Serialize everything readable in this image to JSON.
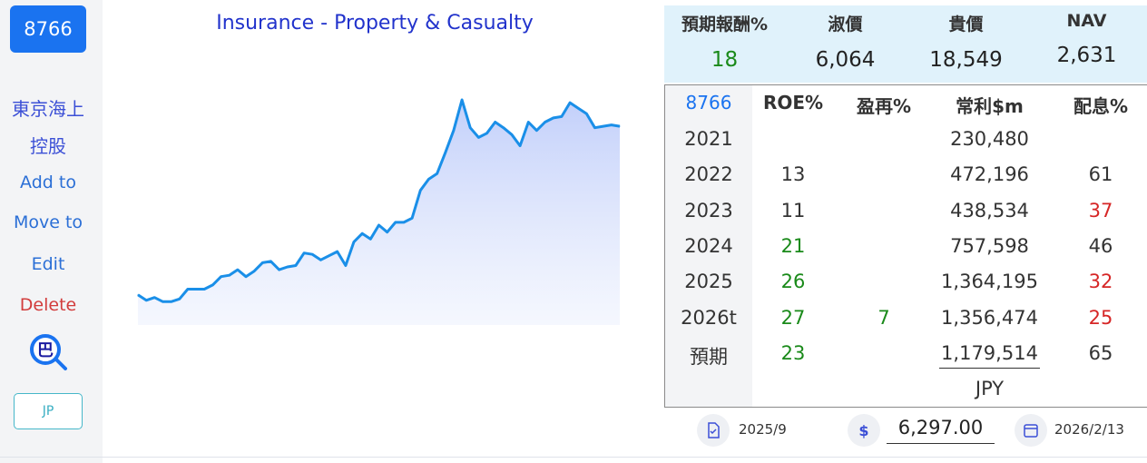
{
  "sidebar": {
    "ticker": "8766",
    "company_line1": "東京海上",
    "company_line2": "控股",
    "add_label": "Add to",
    "move_label": "Move to",
    "edit_label": "Edit",
    "delete_label": "Delete",
    "search_glyph": "巴",
    "market_label": "JP"
  },
  "chart": {
    "title": "Insurance - Property & Casualty"
  },
  "chart_data": {
    "type": "area",
    "title": "Insurance - Property & Casualty",
    "line_color": "#1a8fe8",
    "fill_color": "#c5d3fb",
    "values": [
      0.1,
      0.06,
      0.08,
      0.05,
      0.05,
      0.07,
      0.14,
      0.14,
      0.14,
      0.17,
      0.23,
      0.24,
      0.28,
      0.23,
      0.27,
      0.33,
      0.34,
      0.28,
      0.3,
      0.31,
      0.4,
      0.39,
      0.35,
      0.38,
      0.41,
      0.31,
      0.48,
      0.54,
      0.5,
      0.6,
      0.55,
      0.62,
      0.62,
      0.65,
      0.85,
      0.93,
      0.97,
      1.12,
      1.28,
      1.5,
      1.3,
      1.23,
      1.26,
      1.34,
      1.3,
      1.25,
      1.17,
      1.34,
      1.28,
      1.34,
      1.37,
      1.38,
      1.48,
      1.44,
      1.4,
      1.3,
      1.31,
      1.32,
      1.31
    ]
  },
  "summary": {
    "headers": [
      "預期報酬%",
      "淑價",
      "貴價",
      "NAV"
    ],
    "values": [
      "18",
      "6,064",
      "18,549",
      "2,631"
    ]
  },
  "table": {
    "headers": [
      "8766",
      "ROE%",
      "盈再%",
      "常利$m",
      "配息%"
    ],
    "rows": [
      {
        "year": "2021",
        "roe": "",
        "reinvest": "",
        "profit": "230,480",
        "payout": ""
      },
      {
        "year": "2022",
        "roe": "13",
        "reinvest": "",
        "profit": "472,196",
        "payout": "61"
      },
      {
        "year": "2023",
        "roe": "11",
        "reinvest": "",
        "profit": "438,534",
        "payout": "37"
      },
      {
        "year": "2024",
        "roe": "21",
        "reinvest": "",
        "profit": "757,598",
        "payout": "46"
      },
      {
        "year": "2025",
        "roe": "26",
        "reinvest": "",
        "profit": "1,364,195",
        "payout": "32"
      },
      {
        "year": "2026t",
        "roe": "27",
        "reinvest": "7",
        "profit": "1,356,474",
        "payout": "25"
      },
      {
        "year": "預期",
        "roe": "23",
        "reinvest": "",
        "profit": "1,179,514",
        "payout": "65"
      }
    ],
    "currency": "JPY"
  },
  "footer": {
    "report_date": "2025/9",
    "currency_symbol": "$",
    "price": "6,297.00",
    "price_date": "2026/2/13"
  },
  "colors": {
    "accent": "#1a73f0",
    "green": "#1a8a1a",
    "red": "#d62626",
    "summary_bg": "#e0f2fb"
  }
}
